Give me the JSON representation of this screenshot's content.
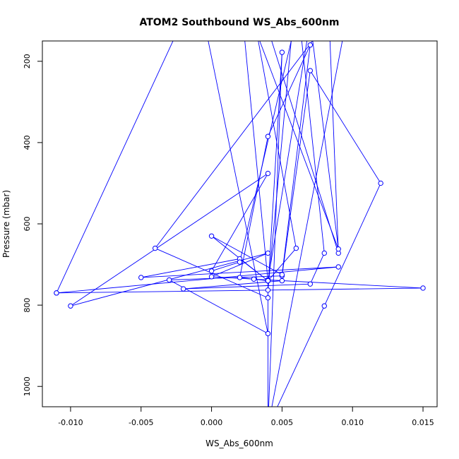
{
  "chart_data": {
    "type": "line",
    "title": "ATOM2 Southbound WS_Abs_600nm",
    "xlabel": "WS_Abs_600nm",
    "ylabel": "Pressure (mbar)",
    "xlim": [
      -0.012,
      0.016
    ],
    "ylim": [
      1050,
      150
    ],
    "y_reversed": true,
    "grid": false,
    "legend": "none",
    "x_ticks": [
      -0.01,
      -0.005,
      0.0,
      0.005,
      0.01,
      0.015
    ],
    "x_tick_labels": [
      "-0.010",
      "-0.005",
      "0.000",
      "0.005",
      "0.010",
      "0.015"
    ],
    "y_ticks": [
      200,
      400,
      600,
      800,
      1000
    ],
    "y_tick_labels": [
      "200",
      "400",
      "600",
      "800",
      "1000"
    ],
    "series": [
      {
        "color": "#0000ff",
        "marker": "open-circle",
        "points": [
          {
            "x": -0.011,
            "y": 770
          },
          {
            "x": -0.001,
            "y": 20
          },
          {
            "x": 0.004,
            "y": 870
          },
          {
            "x": -0.003,
            "y": 738
          },
          {
            "x": 0.005,
            "y": 728
          },
          {
            "x": 0.007,
            "y": 223
          },
          {
            "x": 0.012,
            "y": 500
          },
          {
            "x": 0.008,
            "y": 802
          },
          {
            "x": 0.004,
            "y": 1100
          },
          {
            "x": 0.005,
            "y": 178
          },
          {
            "x": 0.004,
            "y": 763
          },
          {
            "x": 0.006,
            "y": 20
          },
          {
            "x": 0.008,
            "y": 672
          },
          {
            "x": 0.007,
            "y": 748
          },
          {
            "x": -0.002,
            "y": 760
          },
          {
            "x": 0.005,
            "y": 740
          },
          {
            "x": 0.004,
            "y": 738
          },
          {
            "x": 0.004,
            "y": 740
          },
          {
            "x": 0.004,
            "y": 782
          },
          {
            "x": -0.004,
            "y": 660
          },
          {
            "x": 0.01,
            "y": 20
          },
          {
            "x": 0.004,
            "y": 1100
          },
          {
            "x": 0.004,
            "y": 740
          },
          {
            "x": 0.003,
            "y": 736
          },
          {
            "x": 0.002,
            "y": 732
          },
          {
            "x": 0.004,
            "y": 385
          },
          {
            "x": 0.007,
            "y": 160
          },
          {
            "x": 0.005,
            "y": 725
          },
          {
            "x": 0.0,
            "y": 630
          },
          {
            "x": 0.004,
            "y": 740
          },
          {
            "x": 0.002,
            "y": 686
          },
          {
            "x": -0.005,
            "y": 732
          },
          {
            "x": 0.009,
            "y": 706
          },
          {
            "x": -0.011,
            "y": 770
          },
          {
            "x": 0.015,
            "y": 758
          },
          {
            "x": 0.004,
            "y": 738
          },
          {
            "x": 0.0,
            "y": 730
          },
          {
            "x": 0.004,
            "y": 672
          },
          {
            "x": -0.01,
            "y": 802
          },
          {
            "x": 0.004,
            "y": 476
          },
          {
            "x": 0.0,
            "y": 716
          },
          {
            "x": 0.002,
            "y": 694
          },
          {
            "x": 0.008,
            "y": -200
          },
          {
            "x": 0.009,
            "y": 672
          },
          {
            "x": 0.002,
            "y": -100
          },
          {
            "x": 0.006,
            "y": 660
          },
          {
            "x": 0.004,
            "y": 740
          },
          {
            "x": 0.002,
            "y": 20
          },
          {
            "x": 0.009,
            "y": 662
          },
          {
            "x": 0.007,
            "y": 100
          },
          {
            "x": 0.004,
            "y": 740
          }
        ]
      }
    ]
  }
}
